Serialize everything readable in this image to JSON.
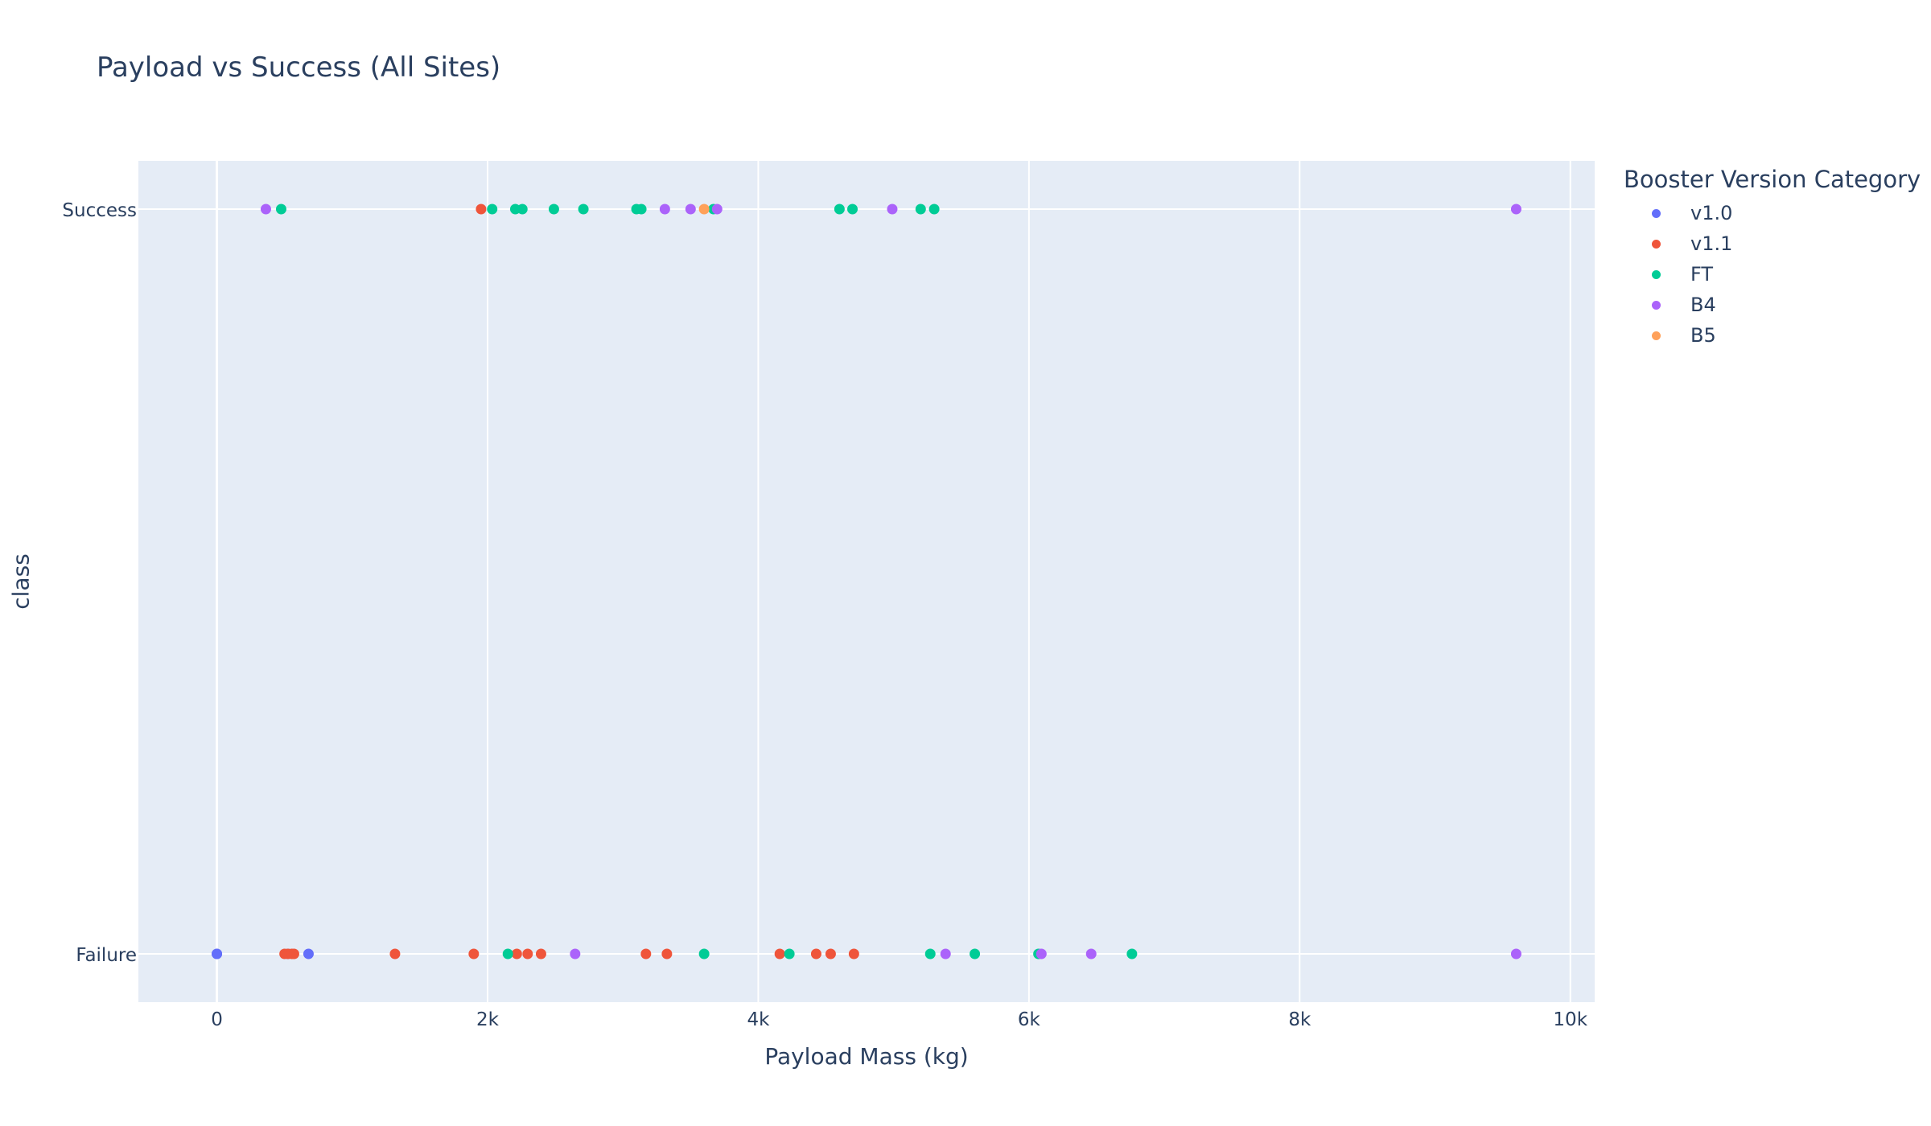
{
  "chart_data": {
    "type": "scatter",
    "title": "Payload vs Success (All Sites)",
    "xlabel": "Payload Mass (kg)",
    "ylabel": "class",
    "xlim": [
      -580,
      10180
    ],
    "y_categories": [
      "Failure",
      "Success"
    ],
    "x_ticks": [
      0,
      2000,
      4000,
      6000,
      8000,
      10000
    ],
    "x_tick_labels": [
      "0",
      "2k",
      "4k",
      "6k",
      "8k",
      "10k"
    ],
    "grid": true,
    "legend": {
      "title": "Booster Version Category",
      "placement": "right",
      "entries": [
        "v1.0",
        "v1.1",
        "FT",
        "B4",
        "B5"
      ]
    },
    "series": [
      {
        "name": "v1.0",
        "color": "#636efa",
        "points": [
          [
            0,
            "Failure"
          ],
          [
            0,
            "Failure"
          ],
          [
            525,
            "Failure"
          ],
          [
            677,
            "Failure"
          ]
        ]
      },
      {
        "name": "v1.1",
        "color": "#ef553b",
        "points": [
          [
            500,
            "Failure"
          ],
          [
            525,
            "Failure"
          ],
          [
            553,
            "Failure"
          ],
          [
            570,
            "Failure"
          ],
          [
            1316,
            "Failure"
          ],
          [
            1898,
            "Failure"
          ],
          [
            2216,
            "Failure"
          ],
          [
            2296,
            "Failure"
          ],
          [
            2395,
            "Failure"
          ],
          [
            3170,
            "Failure"
          ],
          [
            3325,
            "Failure"
          ],
          [
            4159,
            "Failure"
          ],
          [
            4428,
            "Failure"
          ],
          [
            4535,
            "Failure"
          ],
          [
            4707,
            "Failure"
          ],
          [
            1952,
            "Success"
          ]
        ]
      },
      {
        "name": "FT",
        "color": "#00cc96",
        "points": [
          [
            2150,
            "Failure"
          ],
          [
            3600,
            "Failure"
          ],
          [
            4230,
            "Failure"
          ],
          [
            5271,
            "Failure"
          ],
          [
            5600,
            "Failure"
          ],
          [
            6070,
            "Failure"
          ],
          [
            6761,
            "Failure"
          ],
          [
            475,
            "Success"
          ],
          [
            2034,
            "Success"
          ],
          [
            2205,
            "Success"
          ],
          [
            2257,
            "Success"
          ],
          [
            2490,
            "Success"
          ],
          [
            2708,
            "Success"
          ],
          [
            3100,
            "Success"
          ],
          [
            3136,
            "Success"
          ],
          [
            3669,
            "Success"
          ],
          [
            4600,
            "Success"
          ],
          [
            4696,
            "Success"
          ],
          [
            5200,
            "Success"
          ],
          [
            5300,
            "Success"
          ]
        ]
      },
      {
        "name": "B4",
        "color": "#ab63fa",
        "points": [
          [
            2647,
            "Failure"
          ],
          [
            5384,
            "Failure"
          ],
          [
            6092,
            "Failure"
          ],
          [
            6460,
            "Failure"
          ],
          [
            9600,
            "Failure"
          ],
          [
            362,
            "Success"
          ],
          [
            3310,
            "Success"
          ],
          [
            3500,
            "Success"
          ],
          [
            3696,
            "Success"
          ],
          [
            4990,
            "Success"
          ],
          [
            9600,
            "Success"
          ]
        ]
      },
      {
        "name": "B5",
        "color": "#ffa15a",
        "points": [
          [
            3600,
            "Success"
          ]
        ]
      }
    ]
  }
}
